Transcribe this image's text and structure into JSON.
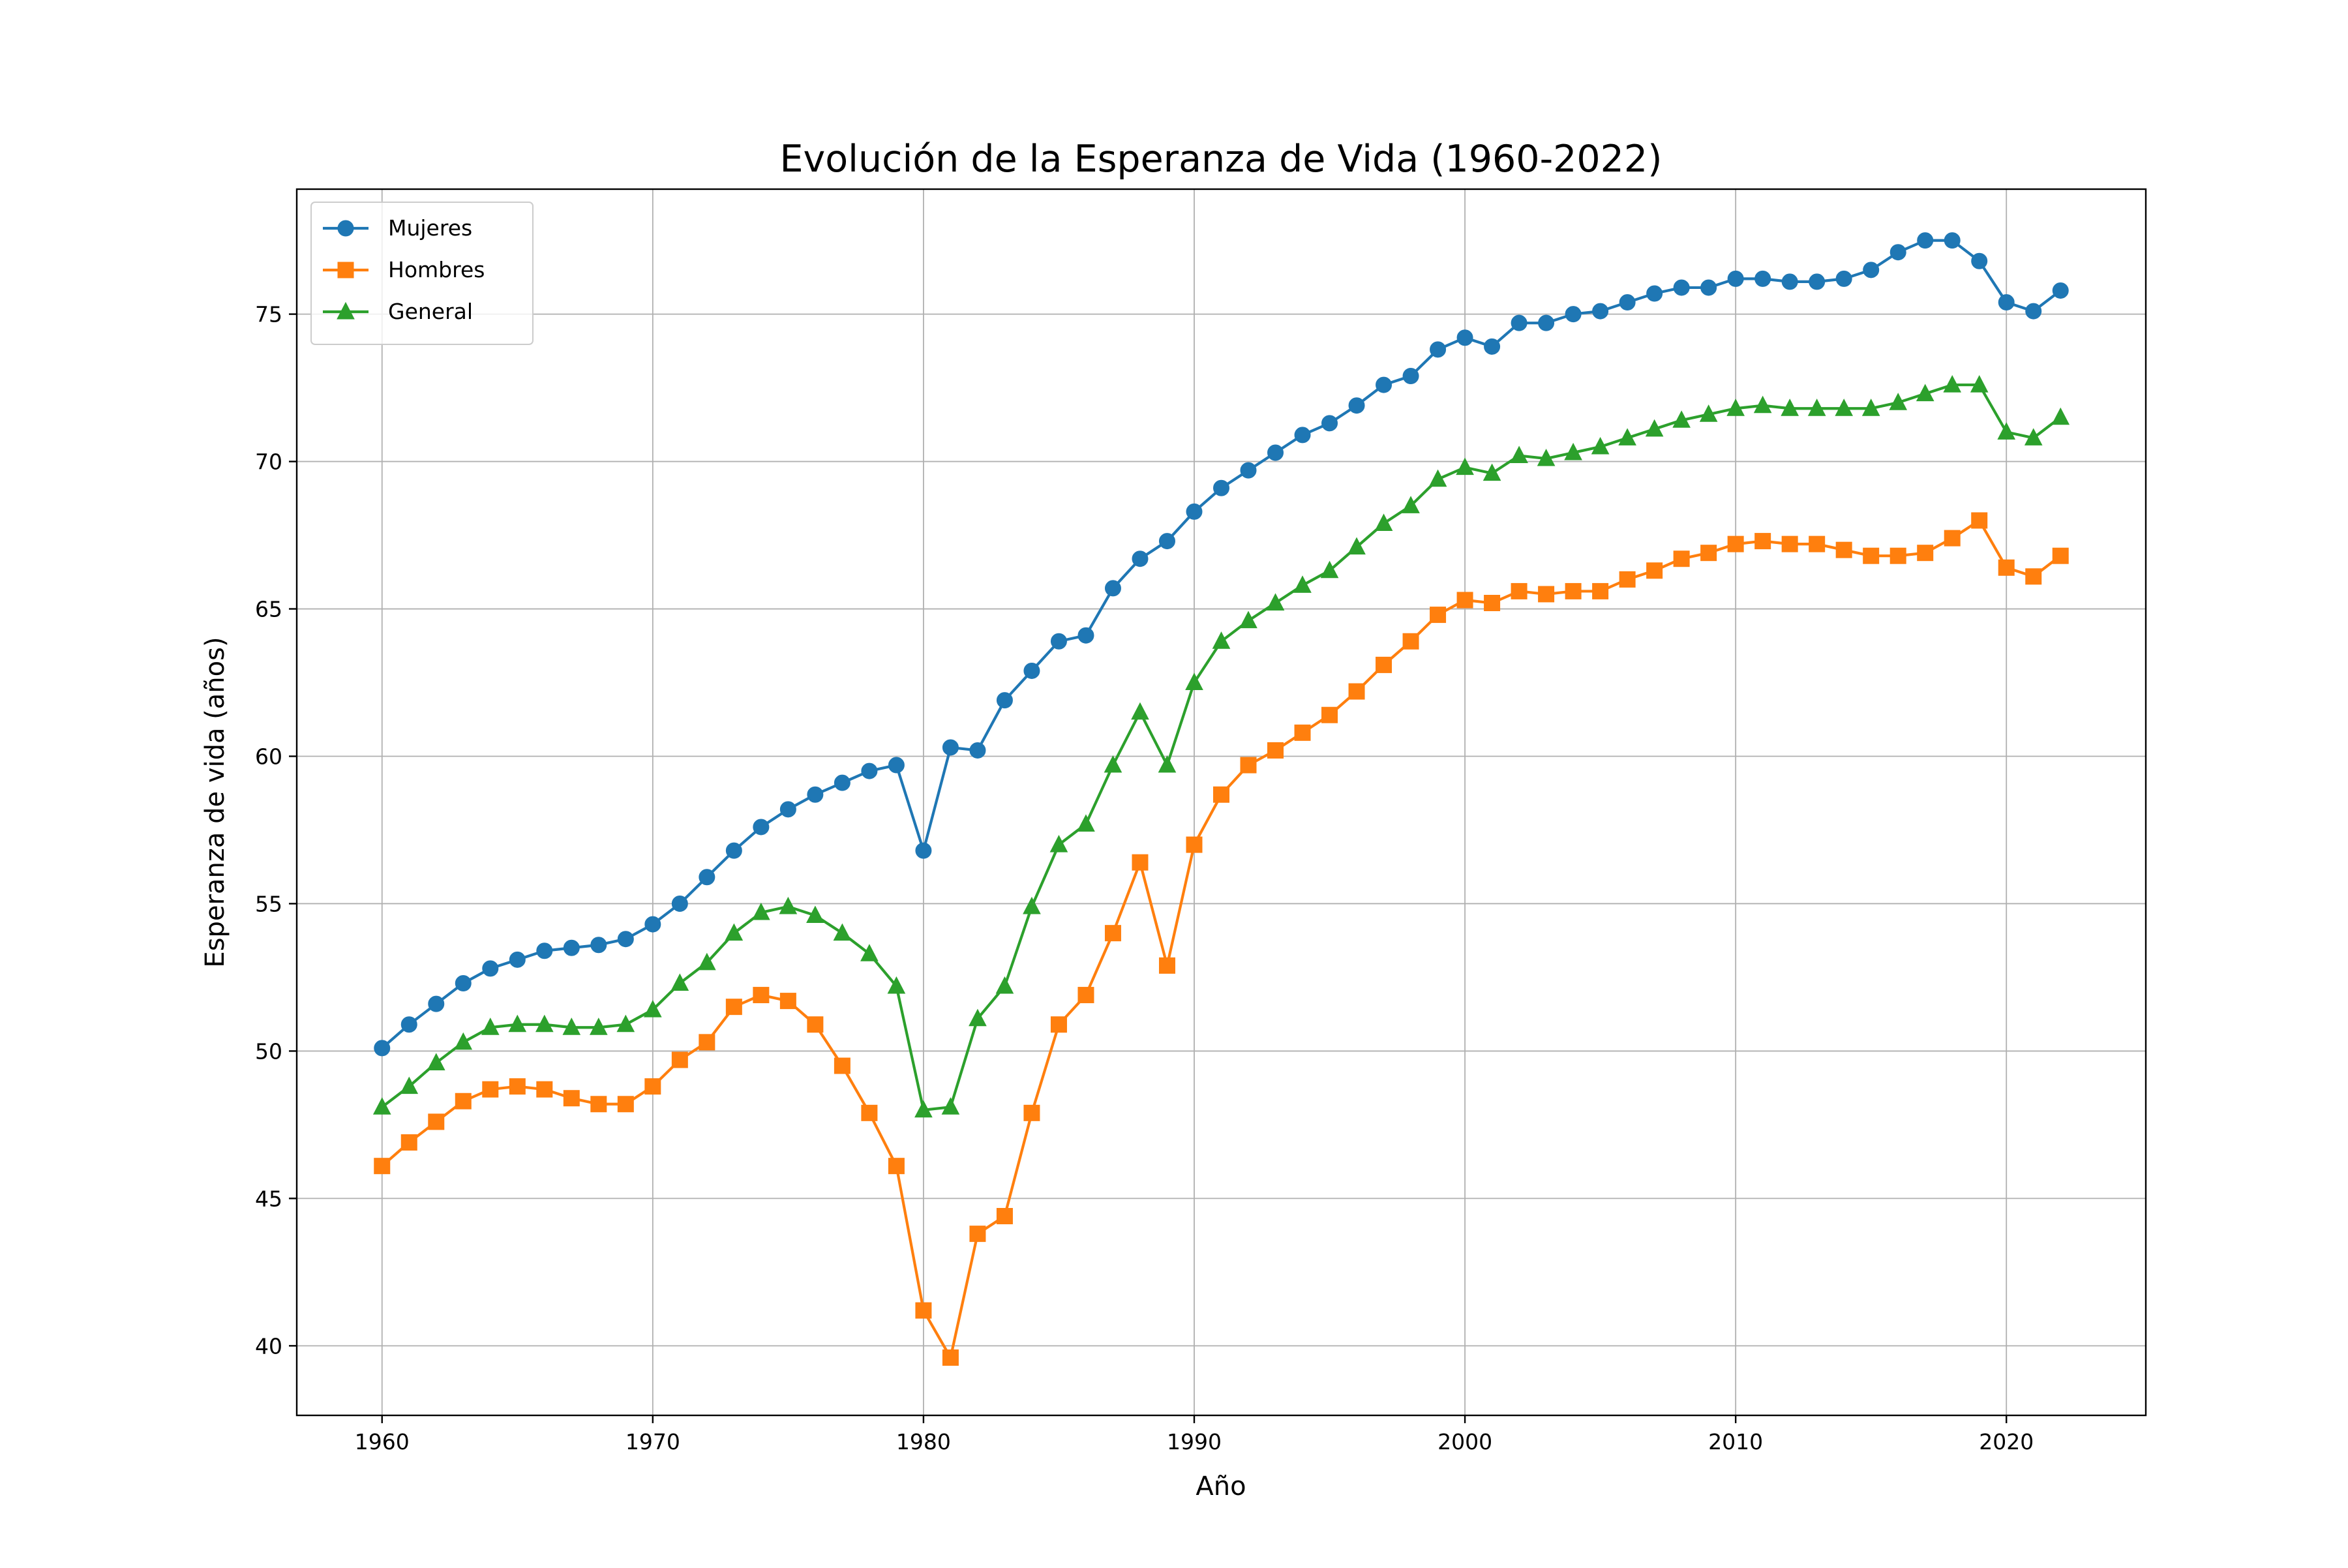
{
  "chart_data": {
    "type": "line",
    "title": "Evolución de la Esperanza de Vida (1960-2022)",
    "xlabel": "Año",
    "ylabel": "Esperanza de vida (años)",
    "xlim": [
      1956.85,
      2025.15
    ],
    "ylim": [
      37.64,
      79.24
    ],
    "xticks": [
      1960,
      1970,
      1980,
      1990,
      2000,
      2010,
      2020
    ],
    "yticks": [
      40,
      45,
      50,
      55,
      60,
      65,
      70,
      75
    ],
    "grid": true,
    "legend_position": "top-left",
    "x": [
      1960,
      1961,
      1962,
      1963,
      1964,
      1965,
      1966,
      1967,
      1968,
      1969,
      1970,
      1971,
      1972,
      1973,
      1974,
      1975,
      1976,
      1977,
      1978,
      1979,
      1980,
      1981,
      1982,
      1983,
      1984,
      1985,
      1986,
      1987,
      1988,
      1989,
      1990,
      1991,
      1992,
      1993,
      1994,
      1995,
      1996,
      1997,
      1998,
      1999,
      2000,
      2001,
      2002,
      2003,
      2004,
      2005,
      2006,
      2007,
      2008,
      2009,
      2010,
      2011,
      2012,
      2013,
      2014,
      2015,
      2016,
      2017,
      2018,
      2019,
      2020,
      2021,
      2022
    ],
    "series": [
      {
        "name": "Mujeres",
        "color": "#1f77b4",
        "marker": "circle",
        "values": [
          50.1,
          50.9,
          51.6,
          52.3,
          52.8,
          53.1,
          53.4,
          53.5,
          53.6,
          53.8,
          54.3,
          55.0,
          55.9,
          56.8,
          57.6,
          58.2,
          58.7,
          59.1,
          59.5,
          59.7,
          56.8,
          60.3,
          60.2,
          61.9,
          62.9,
          63.9,
          64.1,
          65.7,
          66.7,
          67.3,
          68.3,
          69.1,
          69.7,
          70.3,
          70.9,
          71.3,
          71.9,
          72.6,
          72.9,
          73.8,
          74.2,
          73.9,
          74.7,
          74.7,
          75.0,
          75.1,
          75.4,
          75.7,
          75.9,
          75.9,
          76.2,
          76.2,
          76.1,
          76.1,
          76.2,
          76.5,
          77.1,
          77.5,
          77.5,
          76.8,
          75.4,
          75.1,
          75.8
        ]
      },
      {
        "name": "Hombres",
        "color": "#ff7f0e",
        "marker": "square",
        "values": [
          46.1,
          46.9,
          47.6,
          48.3,
          48.7,
          48.8,
          48.7,
          48.4,
          48.2,
          48.2,
          48.8,
          49.7,
          50.3,
          51.5,
          51.9,
          51.7,
          50.9,
          49.5,
          47.9,
          46.1,
          41.2,
          39.6,
          43.8,
          44.4,
          47.9,
          50.9,
          51.9,
          54.0,
          56.4,
          52.9,
          57.0,
          58.7,
          59.7,
          60.2,
          60.8,
          61.4,
          62.2,
          63.1,
          63.9,
          64.8,
          65.3,
          65.2,
          65.6,
          65.5,
          65.6,
          65.6,
          66.0,
          66.3,
          66.7,
          66.9,
          67.2,
          67.3,
          67.2,
          67.2,
          67.0,
          66.8,
          66.8,
          66.9,
          67.4,
          68.0,
          66.4,
          66.1,
          66.8
        ]
      },
      {
        "name": "General",
        "color": "#2ca02c",
        "marker": "triangle",
        "values": [
          48.1,
          48.8,
          49.6,
          50.3,
          50.8,
          50.9,
          50.9,
          50.8,
          50.8,
          50.9,
          51.4,
          52.3,
          53.0,
          54.0,
          54.7,
          54.9,
          54.6,
          54.0,
          53.3,
          52.2,
          48.0,
          48.1,
          51.1,
          52.2,
          54.9,
          57.0,
          57.7,
          59.7,
          61.5,
          59.7,
          62.5,
          63.9,
          64.6,
          65.2,
          65.8,
          66.3,
          67.1,
          67.9,
          68.5,
          69.4,
          69.8,
          69.6,
          70.2,
          70.1,
          70.3,
          70.5,
          70.8,
          71.1,
          71.4,
          71.6,
          71.8,
          71.9,
          71.8,
          71.8,
          71.8,
          71.8,
          72.0,
          72.3,
          72.6,
          72.6,
          71.0,
          70.8,
          71.5
        ]
      }
    ]
  }
}
